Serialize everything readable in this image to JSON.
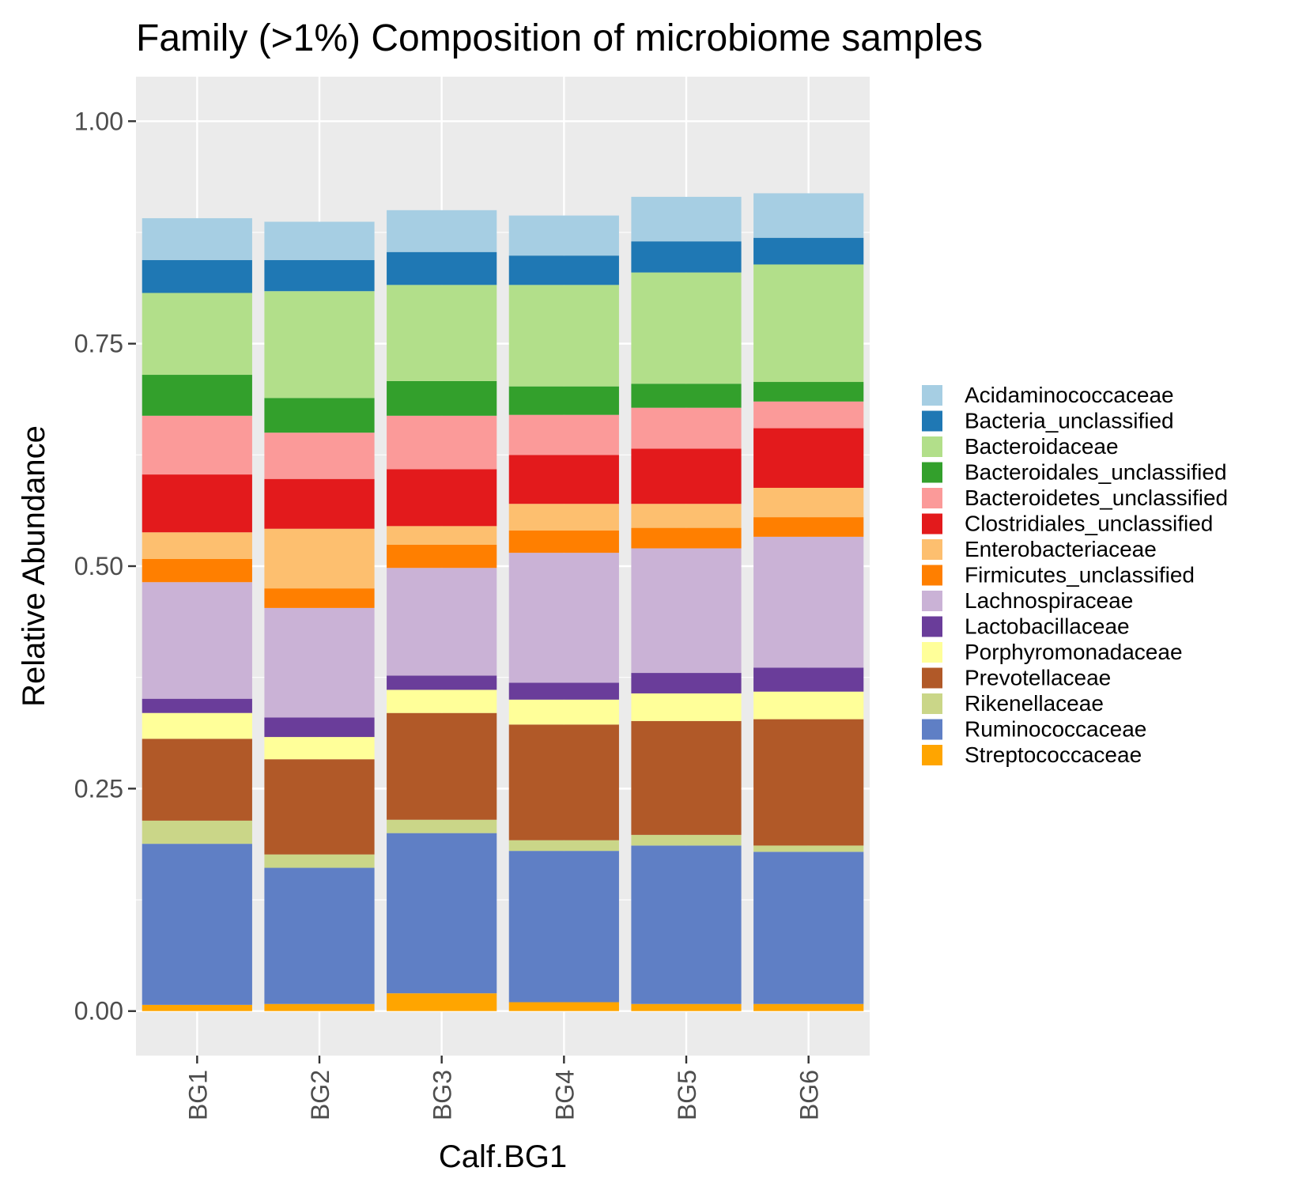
{
  "chart_data": {
    "type": "bar",
    "stacked": true,
    "title": "Family (>1%) Composition of microbiome samples",
    "xlabel": "Calf.BG1",
    "ylabel": "Relative Abundance",
    "ylim": [
      -0.05,
      1.05
    ],
    "yticks": [
      "0.00",
      "0.25",
      "0.50",
      "0.75",
      "1.00"
    ],
    "ytick_values": [
      0,
      0.25,
      0.5,
      0.75,
      1.0
    ],
    "grid": true,
    "legend_position": "right",
    "categories": [
      "BG1",
      "BG2",
      "BG3",
      "BG4",
      "BG5",
      "BG6"
    ],
    "series": [
      {
        "name": "Streptococcaceae",
        "color": "#ffa500",
        "values": [
          0.007,
          0.008,
          0.02,
          0.01,
          0.008,
          0.008
        ]
      },
      {
        "name": "Ruminococcaceae",
        "color": "#5f7fc5",
        "values": [
          0.181,
          0.153,
          0.18,
          0.17,
          0.178,
          0.171
        ]
      },
      {
        "name": "Rikenellaceae",
        "color": "#cad688",
        "values": [
          0.026,
          0.015,
          0.015,
          0.012,
          0.012,
          0.007
        ]
      },
      {
        "name": "Prevotellaceae",
        "color": "#b15928",
        "values": [
          0.092,
          0.107,
          0.12,
          0.13,
          0.128,
          0.142
        ]
      },
      {
        "name": "Porphyromonadaceae",
        "color": "#ffff99",
        "values": [
          0.029,
          0.025,
          0.026,
          0.028,
          0.031,
          0.031
        ]
      },
      {
        "name": "Lactobacillaceae",
        "color": "#6a3d9a",
        "values": [
          0.016,
          0.022,
          0.016,
          0.019,
          0.023,
          0.027
        ]
      },
      {
        "name": "Lachnospiraceae",
        "color": "#cab2d6",
        "values": [
          0.131,
          0.123,
          0.121,
          0.146,
          0.14,
          0.147
        ]
      },
      {
        "name": "Firmicutes_unclassified",
        "color": "#ff7f00",
        "values": [
          0.026,
          0.022,
          0.026,
          0.025,
          0.023,
          0.022
        ]
      },
      {
        "name": "Enterobacteriaceae",
        "color": "#fdbf6f",
        "values": [
          0.03,
          0.067,
          0.021,
          0.03,
          0.027,
          0.033
        ]
      },
      {
        "name": "Clostridiales_unclassified",
        "color": "#e31a1c",
        "values": [
          0.065,
          0.056,
          0.064,
          0.055,
          0.062,
          0.067
        ]
      },
      {
        "name": "Bacteroidetes_unclassified",
        "color": "#fb9a99",
        "values": [
          0.066,
          0.052,
          0.06,
          0.045,
          0.046,
          0.03
        ]
      },
      {
        "name": "Bacteroidales_unclassified",
        "color": "#33a02c",
        "values": [
          0.046,
          0.039,
          0.039,
          0.032,
          0.027,
          0.022
        ]
      },
      {
        "name": "Bacteroidaceae",
        "color": "#b2df8a",
        "values": [
          0.092,
          0.12,
          0.108,
          0.114,
          0.125,
          0.132
        ]
      },
      {
        "name": "Bacteria_unclassified",
        "color": "#1f78b4",
        "values": [
          0.037,
          0.035,
          0.037,
          0.033,
          0.035,
          0.03
        ]
      },
      {
        "name": "Acidaminococcaceae",
        "color": "#a6cee3",
        "values": [
          0.047,
          0.043,
          0.047,
          0.045,
          0.05,
          0.05
        ]
      }
    ],
    "legend_order": [
      "Acidaminococcaceae",
      "Bacteria_unclassified",
      "Bacteroidaceae",
      "Bacteroidales_unclassified",
      "Bacteroidetes_unclassified",
      "Clostridiales_unclassified",
      "Enterobacteriaceae",
      "Firmicutes_unclassified",
      "Lachnospiraceae",
      "Lactobacillaceae",
      "Porphyromonadaceae",
      "Prevotellaceae",
      "Rikenellaceae",
      "Ruminococcaceae",
      "Streptococcaceae"
    ],
    "colors": {
      "panel_background": "#ebebeb",
      "grid": "#ffffff",
      "tick_text": "#4d4d4d",
      "tick_mark": "#333333"
    }
  }
}
